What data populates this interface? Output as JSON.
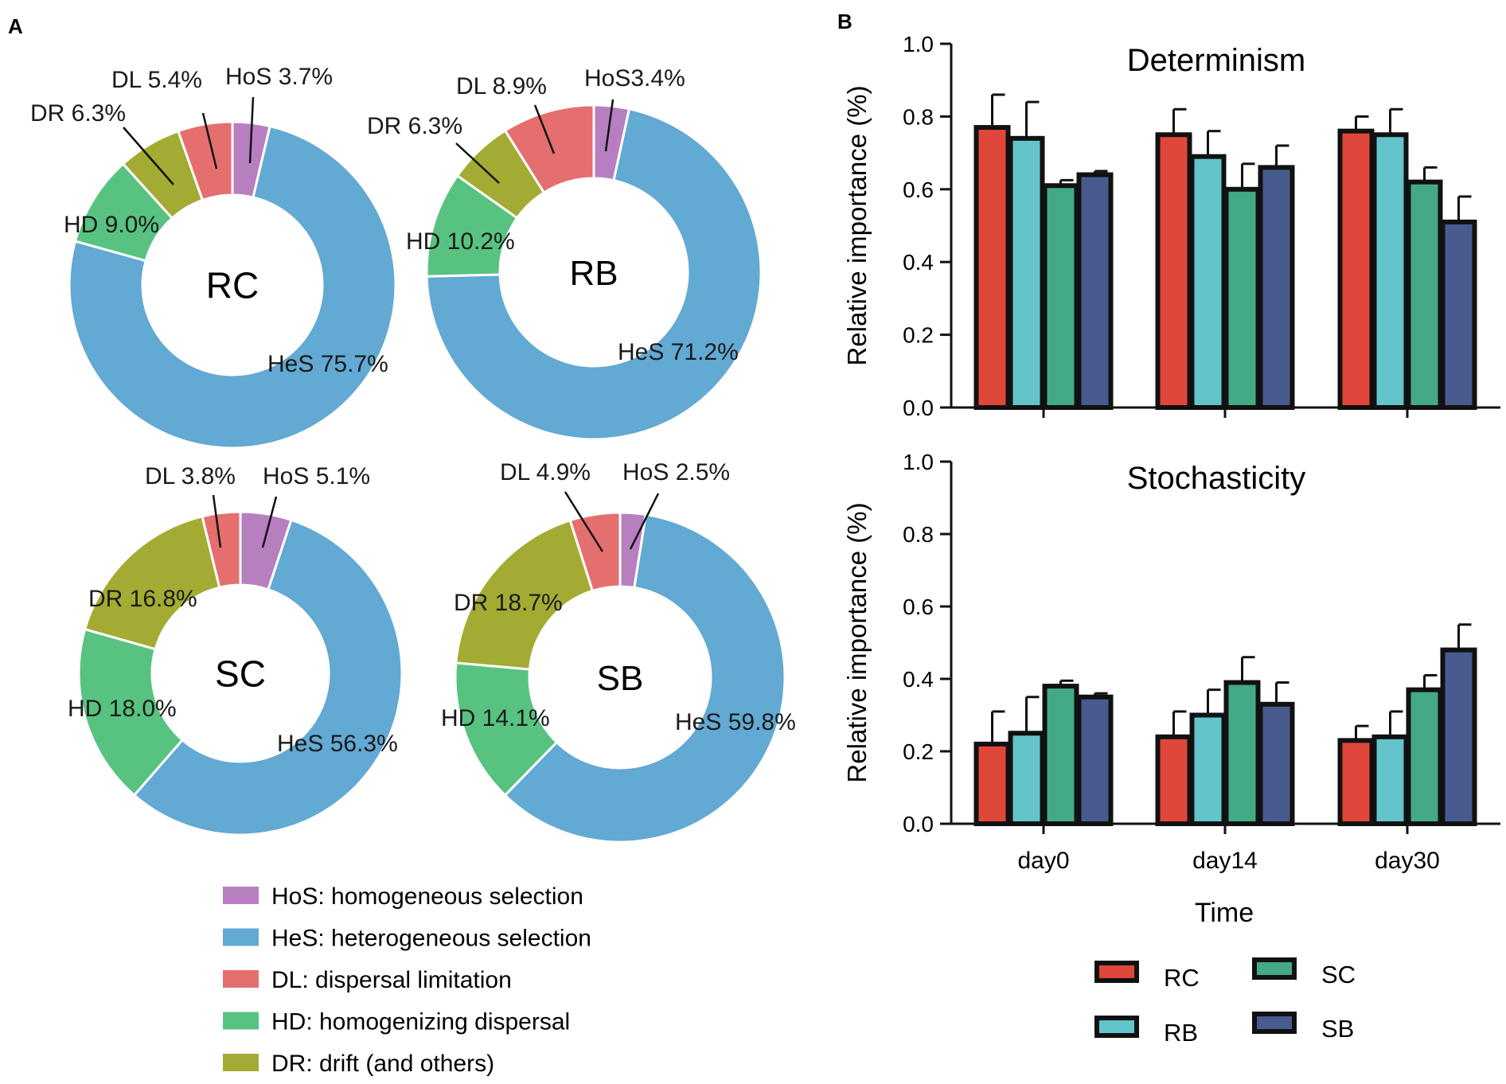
{
  "panel_labels": {
    "a": "A",
    "b": "B"
  },
  "colors": {
    "HoS": "#b77fc0",
    "HeS": "#62a9d3",
    "DL": "#e56f6f",
    "HD": "#58c381",
    "DR": "#a4ab33",
    "RC": "#e0473b",
    "RB": "#63c4cc",
    "SC": "#44a987",
    "SB": "#485b8f"
  },
  "chart_data": [
    {
      "type": "pie",
      "variant": "donut",
      "center_label": "RC",
      "slices": [
        {
          "key": "HoS",
          "value": 3.7,
          "label": "HoS 3.7%"
        },
        {
          "key": "HeS",
          "value": 75.7,
          "label": "HeS 75.7%"
        },
        {
          "key": "HD",
          "value": 9.0,
          "label": "HD 9.0%"
        },
        {
          "key": "DR",
          "value": 6.3,
          "label": "DR 6.3%"
        },
        {
          "key": "DL",
          "value": 5.4,
          "label": "DL 5.4%"
        }
      ]
    },
    {
      "type": "pie",
      "variant": "donut",
      "center_label": "RB",
      "slices": [
        {
          "key": "HoS",
          "value": 3.4,
          "label": "HoS3.4%"
        },
        {
          "key": "HeS",
          "value": 71.2,
          "label": "HeS 71.2%"
        },
        {
          "key": "HD",
          "value": 10.2,
          "label": "HD 10.2%"
        },
        {
          "key": "DR",
          "value": 6.3,
          "label": "DR 6.3%"
        },
        {
          "key": "DL",
          "value": 8.9,
          "label": "DL 8.9%"
        }
      ]
    },
    {
      "type": "pie",
      "variant": "donut",
      "center_label": "SC",
      "slices": [
        {
          "key": "HoS",
          "value": 5.1,
          "label": "HoS 5.1%"
        },
        {
          "key": "HeS",
          "value": 56.3,
          "label": "HeS 56.3%"
        },
        {
          "key": "HD",
          "value": 18.0,
          "label": "HD 18.0%"
        },
        {
          "key": "DR",
          "value": 16.8,
          "label": "DR 16.8%"
        },
        {
          "key": "DL",
          "value": 3.8,
          "label": "DL 3.8%"
        }
      ]
    },
    {
      "type": "pie",
      "variant": "donut",
      "center_label": "SB",
      "slices": [
        {
          "key": "HoS",
          "value": 2.5,
          "label": "HoS 2.5%"
        },
        {
          "key": "HeS",
          "value": 59.8,
          "label": "HeS 59.8%"
        },
        {
          "key": "HD",
          "value": 14.1,
          "label": "HD 14.1%"
        },
        {
          "key": "DR",
          "value": 18.7,
          "label": "DR 18.7%"
        },
        {
          "key": "DL",
          "value": 4.9,
          "label": "DL 4.9%"
        }
      ]
    },
    {
      "type": "bar",
      "title": "Determinism",
      "categories": [
        "day0",
        "day14",
        "day30"
      ],
      "ylabel": "Relative importance (%)",
      "ylim": [
        0,
        1.0
      ],
      "yticks": [
        "0.0",
        "0.2",
        "0.4",
        "0.6",
        "0.8",
        "1.0"
      ],
      "series": [
        {
          "name": "RC",
          "values": [
            0.77,
            0.75,
            0.76
          ],
          "errors": [
            0.09,
            0.07,
            0.04
          ]
        },
        {
          "name": "RB",
          "values": [
            0.74,
            0.69,
            0.75
          ],
          "errors": [
            0.1,
            0.07,
            0.07
          ]
        },
        {
          "name": "SC",
          "values": [
            0.61,
            0.6,
            0.62
          ],
          "errors": [
            0.015,
            0.07,
            0.04
          ]
        },
        {
          "name": "SB",
          "values": [
            0.64,
            0.66,
            0.51
          ],
          "errors": [
            0.01,
            0.06,
            0.07
          ]
        }
      ]
    },
    {
      "type": "bar",
      "title": "Stochasticity",
      "categories": [
        "day0",
        "day14",
        "day30"
      ],
      "xlabel": "Time",
      "ylabel": "Relative importance (%)",
      "ylim": [
        0,
        1.0
      ],
      "yticks": [
        "0.0",
        "0.2",
        "0.4",
        "0.6",
        "0.8",
        "1.0"
      ],
      "series": [
        {
          "name": "RC",
          "values": [
            0.22,
            0.24,
            0.23
          ],
          "errors": [
            0.09,
            0.07,
            0.04
          ]
        },
        {
          "name": "RB",
          "values": [
            0.25,
            0.3,
            0.24
          ],
          "errors": [
            0.1,
            0.07,
            0.07
          ]
        },
        {
          "name": "SC",
          "values": [
            0.38,
            0.39,
            0.37
          ],
          "errors": [
            0.015,
            0.07,
            0.04
          ]
        },
        {
          "name": "SB",
          "values": [
            0.35,
            0.33,
            0.48
          ],
          "errors": [
            0.01,
            0.06,
            0.07
          ]
        }
      ]
    }
  ],
  "pie_legend": [
    {
      "key": "HoS",
      "label": "HoS: homogeneous selection"
    },
    {
      "key": "HeS",
      "label": "HeS: heterogeneous selection"
    },
    {
      "key": "DL",
      "label": "DL: dispersal limitation"
    },
    {
      "key": "HD",
      "label": "HD: homogenizing dispersal"
    },
    {
      "key": "DR",
      "label": "DR: drift (and others)"
    }
  ],
  "bar_legend": [
    {
      "key": "RC",
      "label": "RC"
    },
    {
      "key": "SC",
      "label": "SC"
    },
    {
      "key": "RB",
      "label": "RB"
    },
    {
      "key": "SB",
      "label": "SB"
    }
  ]
}
